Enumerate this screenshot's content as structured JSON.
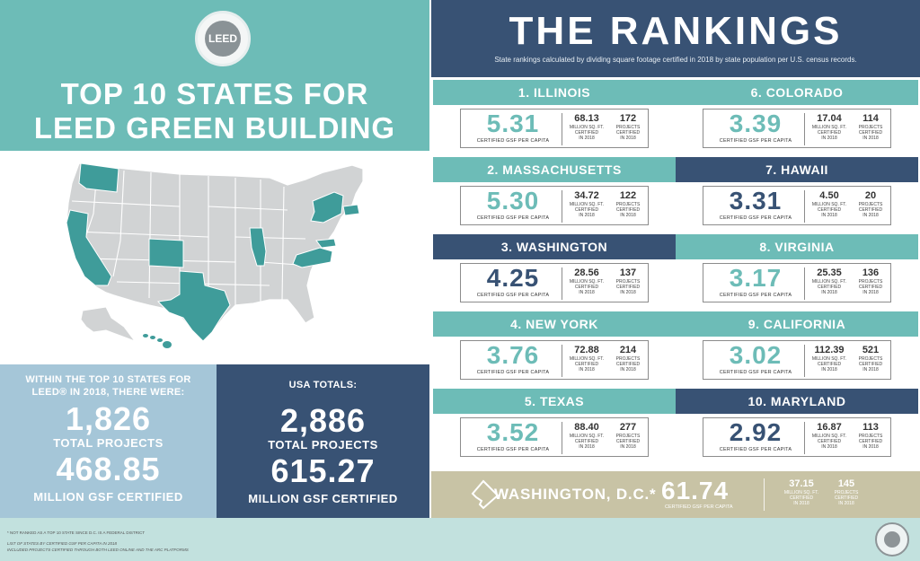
{
  "header": {
    "logo_text": "LEED",
    "title_line1": "TOP 10 STATES FOR",
    "title_line2": "LEED GREEN BUILDING"
  },
  "colors": {
    "teal": "#6dbcb7",
    "navy": "#385274",
    "light_blue": "#a5c6d8",
    "highlight_state": "#3f9c9a",
    "map_state": "#d1d3d4",
    "tan": "#c8c3a5",
    "footer": "#c2e1de"
  },
  "summary": {
    "top10": {
      "intro_line1": "WITHIN THE TOP 10 STATES FOR",
      "intro_line2": "LEED® IN 2018, THERE WERE:",
      "projects_value": "1,826",
      "projects_label": "TOTAL PROJECTS",
      "gsf_value": "468.85",
      "gsf_label": "MILLION GSF CERTIFIED"
    },
    "usa": {
      "intro": "USA TOTALS:",
      "projects_value": "2,886",
      "projects_label": "TOTAL PROJECTS",
      "gsf_value": "615.27",
      "gsf_label": "MILLION GSF CERTIFIED"
    }
  },
  "rankings": {
    "title": "THE RANKINGS",
    "subtitle": "State rankings calculated by dividing square footage certified in 2018 by state population per U.S. census records.",
    "per_capita_label": "CERTIFIED GSF PER CAPITA",
    "msf_label_1": "MILLION SQ. FT.",
    "msf_label_2": "CERTIFIED",
    "msf_label_3": "IN 2018",
    "proj_label_1": "PROJECTS",
    "proj_label_2": "CERTIFIED",
    "proj_label_3": "IN 2018",
    "items": [
      {
        "rank_label": "1. ILLINOIS",
        "per_capita": "5.31",
        "msf": "68.13",
        "projects": "172"
      },
      {
        "rank_label": "2. MASSACHUSETTS",
        "per_capita": "5.30",
        "msf": "34.72",
        "projects": "122"
      },
      {
        "rank_label": "3. WASHINGTON",
        "per_capita": "4.25",
        "msf": "28.56",
        "projects": "137"
      },
      {
        "rank_label": "4. NEW YORK",
        "per_capita": "3.76",
        "msf": "72.88",
        "projects": "214"
      },
      {
        "rank_label": "5. TEXAS",
        "per_capita": "3.52",
        "msf": "88.40",
        "projects": "277"
      },
      {
        "rank_label": "6. COLORADO",
        "per_capita": "3.39",
        "msf": "17.04",
        "projects": "114"
      },
      {
        "rank_label": "7. HAWAII",
        "per_capita": "3.31",
        "msf": "4.50",
        "projects": "20"
      },
      {
        "rank_label": "8. VIRGINIA",
        "per_capita": "3.17",
        "msf": "25.35",
        "projects": "136"
      },
      {
        "rank_label": "9. CALIFORNIA",
        "per_capita": "3.02",
        "msf": "112.39",
        "projects": "521"
      },
      {
        "rank_label": "10. MARYLAND",
        "per_capita": "2.92",
        "msf": "16.87",
        "projects": "113"
      }
    ],
    "dc": {
      "name": "WASHINGTON, D.C.*",
      "per_capita": "61.74",
      "msf": "37.15",
      "projects": "145"
    }
  },
  "footer": {
    "note1": "* NOT RANKED AS A TOP 10 STATE SINCE D.C. IS A FEDERAL DISTRICT",
    "note2": "LIST OF STATES BY CERTIFIED GSF PER CAPITA IN 2018",
    "note3": "INCLUDED PROJECTS CERTIFIED THROUGH BOTH LEED ONLINE AND THE ARC PLATFORMS"
  }
}
